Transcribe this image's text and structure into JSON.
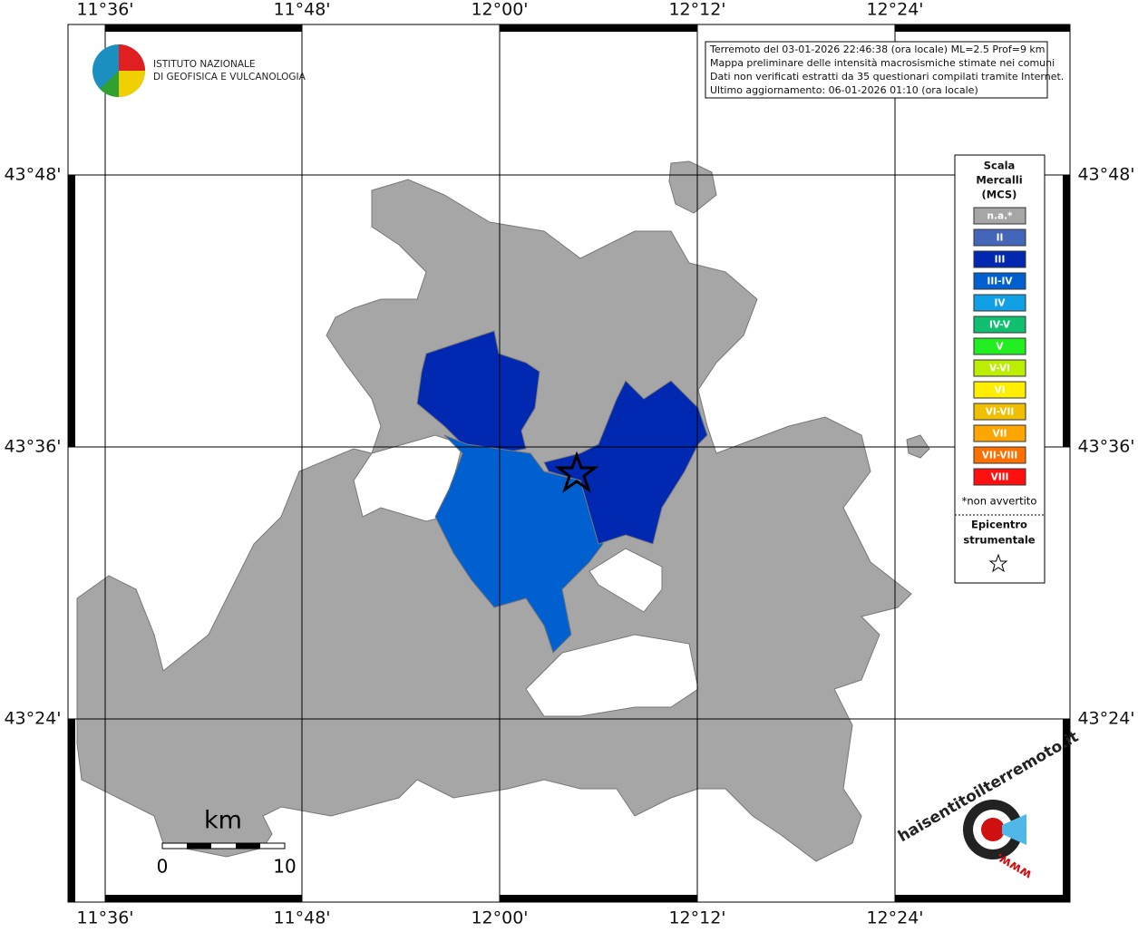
{
  "logo": {
    "line1": "ISTITUTO NAZIONALE",
    "line2": "DI GEOFISICA E VULCANOLOGIA"
  },
  "info": {
    "lines": [
      "Terremoto del 03-01-2026 22:46:38 (ora locale) ML=2.5 Prof=9 km",
      "Mappa preliminare delle intensità macrosismiche stimate nei comuni",
      "Dati non verificati estratti da 35 questionari compilati tramite Internet.",
      "Ultimo aggiornamento: 06-01-2026 01:10 (ora locale)"
    ]
  },
  "axes": {
    "lon": [
      "11°36'",
      "11°48'",
      "12°00'",
      "12°12'",
      "12°24'"
    ],
    "lat": [
      "43°48'",
      "43°36'",
      "43°24'"
    ]
  },
  "legend": {
    "title": [
      "Scala",
      "Mercalli",
      "(MCS)"
    ],
    "items": [
      {
        "label": "n.a.*",
        "color": "#a6a6a6"
      },
      {
        "label": "II",
        "color": "#4466b8"
      },
      {
        "label": "III",
        "color": "#0028b0"
      },
      {
        "label": "III-IV",
        "color": "#0060d0"
      },
      {
        "label": "IV",
        "color": "#11a0e6"
      },
      {
        "label": "IV-V",
        "color": "#10c070"
      },
      {
        "label": "V",
        "color": "#22ee22"
      },
      {
        "label": "V-VI",
        "color": "#bbee00"
      },
      {
        "label": "VI",
        "color": "#ffee00"
      },
      {
        "label": "VI-VII",
        "color": "#f0c000"
      },
      {
        "label": "VII",
        "color": "#ffa500"
      },
      {
        "label": "VII-VIII",
        "color": "#ff7000"
      },
      {
        "label": "VIII",
        "color": "#ff1010"
      }
    ],
    "note": "*non avvertito",
    "epicenter": [
      "Epicentro",
      "strumentale"
    ]
  },
  "scale": {
    "unit": "km",
    "start": "0",
    "end": "10"
  },
  "badge": {
    "site": "haisentitoilterremoto.it",
    "prefix": "www."
  }
}
